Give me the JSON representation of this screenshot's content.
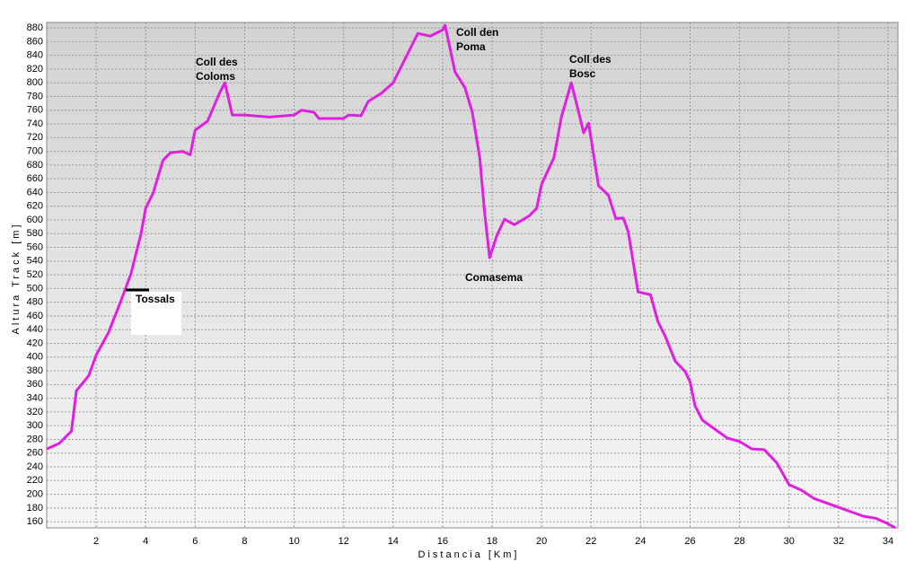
{
  "chart_data": {
    "type": "line",
    "x_label": "Distancia [Km]",
    "y_label": "Altura Track [m]",
    "xlim": [
      0,
      34.4
    ],
    "ylim": [
      151,
      888
    ],
    "xticks": [
      2,
      4,
      6,
      8,
      10,
      12,
      14,
      16,
      18,
      20,
      22,
      24,
      26,
      28,
      30,
      32,
      34
    ],
    "yticks": [
      160,
      180,
      200,
      220,
      240,
      260,
      280,
      300,
      320,
      340,
      360,
      380,
      400,
      420,
      440,
      460,
      480,
      500,
      520,
      540,
      560,
      580,
      600,
      620,
      640,
      660,
      680,
      700,
      720,
      740,
      760,
      780,
      800,
      820,
      840,
      860,
      880
    ],
    "grid": true,
    "series": [
      {
        "color": "#e020e0",
        "x": [
          0,
          0.5,
          1,
          1.2,
          1.7,
          2,
          2.5,
          3,
          3.4,
          3.8,
          4,
          4.3,
          4.7,
          5,
          5.5,
          5.8,
          6,
          6.5,
          7,
          7.2,
          7.5,
          8,
          9,
          10,
          10.3,
          10.8,
          11,
          12,
          12.2,
          12.7,
          13,
          13.5,
          14,
          14.5,
          15,
          15.5,
          16,
          16.1,
          16.5,
          16.9,
          17.2,
          17.5,
          17.7,
          17.9,
          18.2,
          18.5,
          18.9,
          19.5,
          19.8,
          20,
          20.5,
          20.8,
          21.2,
          21.5,
          21.7,
          21.9,
          22.3,
          22.7,
          23,
          23.3,
          23.5,
          23.9,
          24.4,
          24.7,
          25,
          25.4,
          25.8,
          26,
          26.2,
          26.5,
          27,
          27.5,
          28,
          28.5,
          29,
          29.5,
          30,
          30.5,
          31,
          32,
          33,
          33.5,
          34,
          34.3
        ],
        "values": [
          266,
          274,
          292,
          351,
          373,
          403,
          436,
          482,
          521,
          578,
          617,
          639,
          687,
          698,
          700,
          695,
          731,
          744,
          786,
          800,
          753,
          753,
          750,
          753,
          760,
          757,
          748,
          748,
          753,
          752,
          773,
          784,
          800,
          836,
          872,
          868,
          877,
          884,
          816,
          793,
          757,
          691,
          610,
          545,
          578,
          601,
          593,
          606,
          617,
          652,
          691,
          750,
          800,
          757,
          727,
          741,
          650,
          636,
          602,
          603,
          583,
          495,
          491,
          452,
          430,
          394,
          379,
          364,
          329,
          308,
          295,
          282,
          277,
          266,
          265,
          246,
          214,
          206,
          194,
          181,
          168,
          165,
          157,
          151
        ]
      }
    ],
    "annotations": [
      {
        "text": [
          "Coll des",
          "Coloms"
        ]
      },
      {
        "text": [
          "Coll den",
          "Poma"
        ]
      },
      {
        "text": [
          "Coll des",
          "Bosc"
        ]
      },
      {
        "text": [
          "Comasema"
        ]
      },
      {
        "text": [
          "Tossals"
        ]
      }
    ]
  }
}
